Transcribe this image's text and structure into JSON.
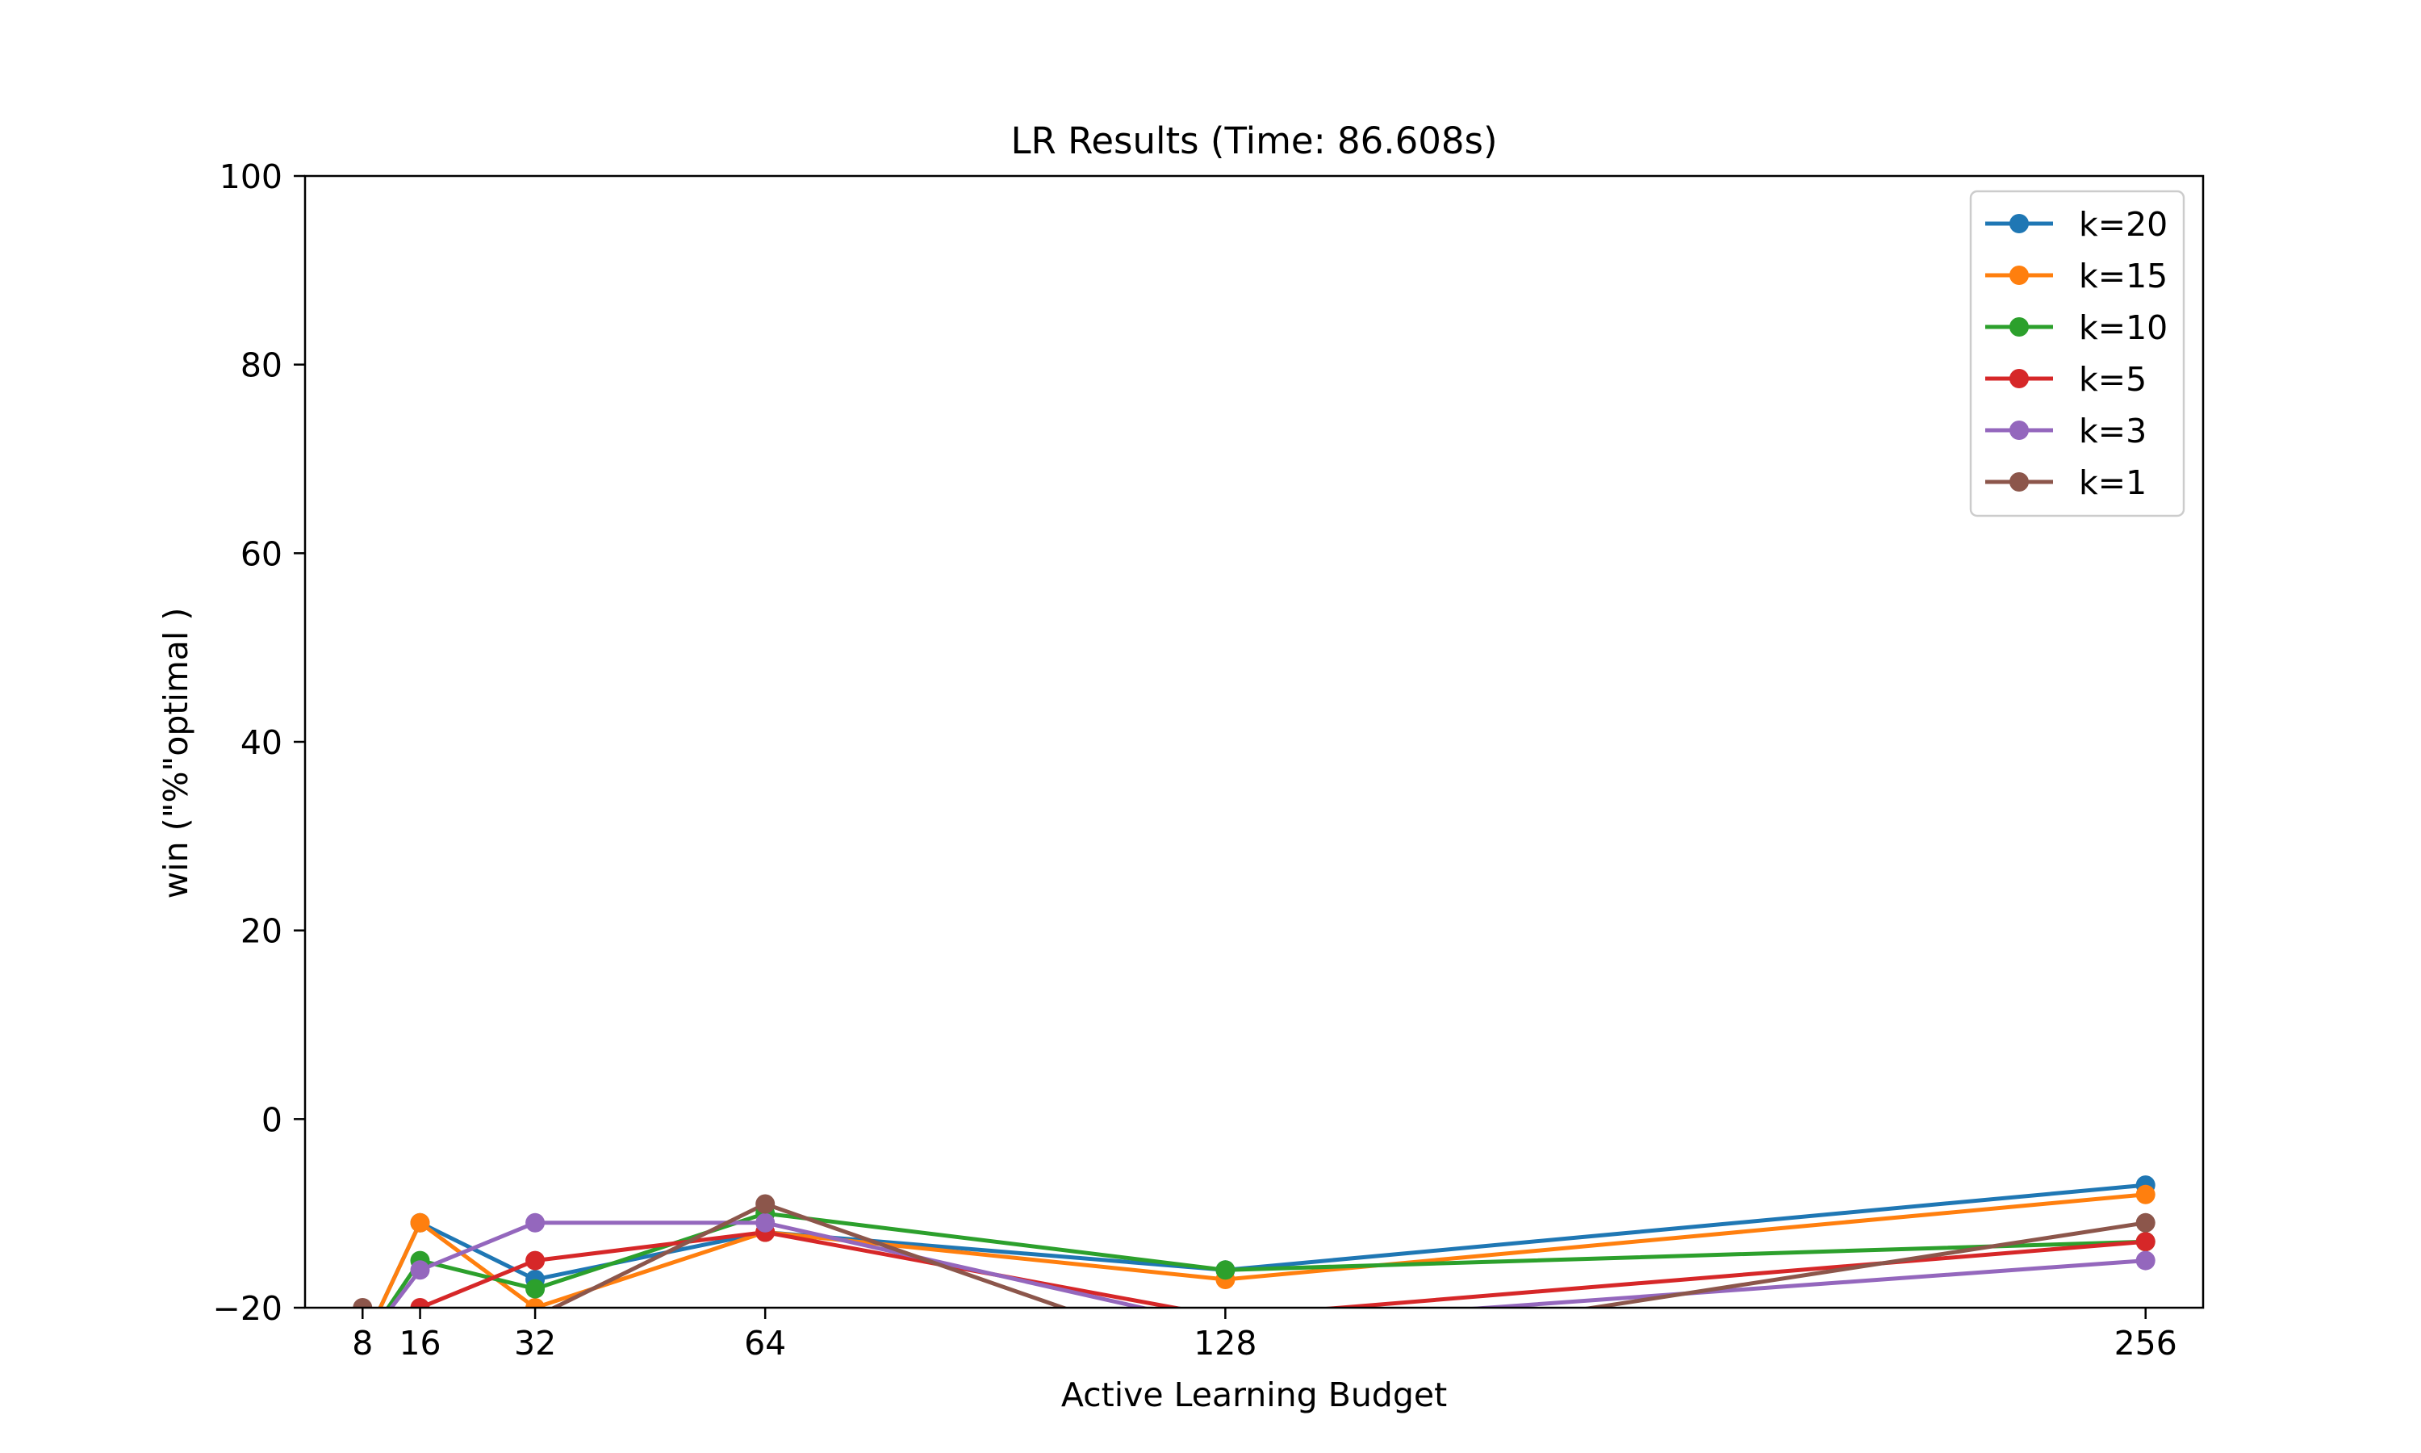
{
  "chart_data": {
    "type": "line",
    "title": "LR Results (Time: 86.608s)",
    "xlabel": "Active Learning Budget",
    "ylabel": "win (\"%\"optimal )",
    "x": [
      8,
      16,
      32,
      64,
      128,
      256
    ],
    "xticks": [
      8,
      16,
      32,
      64,
      128,
      256
    ],
    "yticks": [
      -20,
      0,
      20,
      40,
      60,
      80,
      100
    ],
    "xlim": [
      0,
      264
    ],
    "ylim": [
      -20,
      100
    ],
    "grid": false,
    "legend_position": "upper right",
    "series": [
      {
        "name": "k=20",
        "color": "#1f77b4",
        "values": [
          -24,
          -11,
          -17,
          -12,
          -16,
          -7
        ]
      },
      {
        "name": "k=15",
        "color": "#ff7f0e",
        "values": [
          -24,
          -11,
          -20,
          -12,
          -17,
          -8
        ]
      },
      {
        "name": "k=10",
        "color": "#2ca02c",
        "values": [
          -24,
          -15,
          -18,
          -10,
          -16,
          -13
        ]
      },
      {
        "name": "k=5",
        "color": "#d62728",
        "values": [
          -24,
          -20,
          -15,
          -12,
          -21,
          -13
        ]
      },
      {
        "name": "k=3",
        "color": "#9467bd",
        "values": [
          -24,
          -16,
          -11,
          -11,
          -22,
          -15
        ]
      },
      {
        "name": "k=1",
        "color": "#8c564b",
        "values": [
          -20,
          -24,
          -21,
          -9,
          -26,
          -11
        ]
      }
    ]
  }
}
